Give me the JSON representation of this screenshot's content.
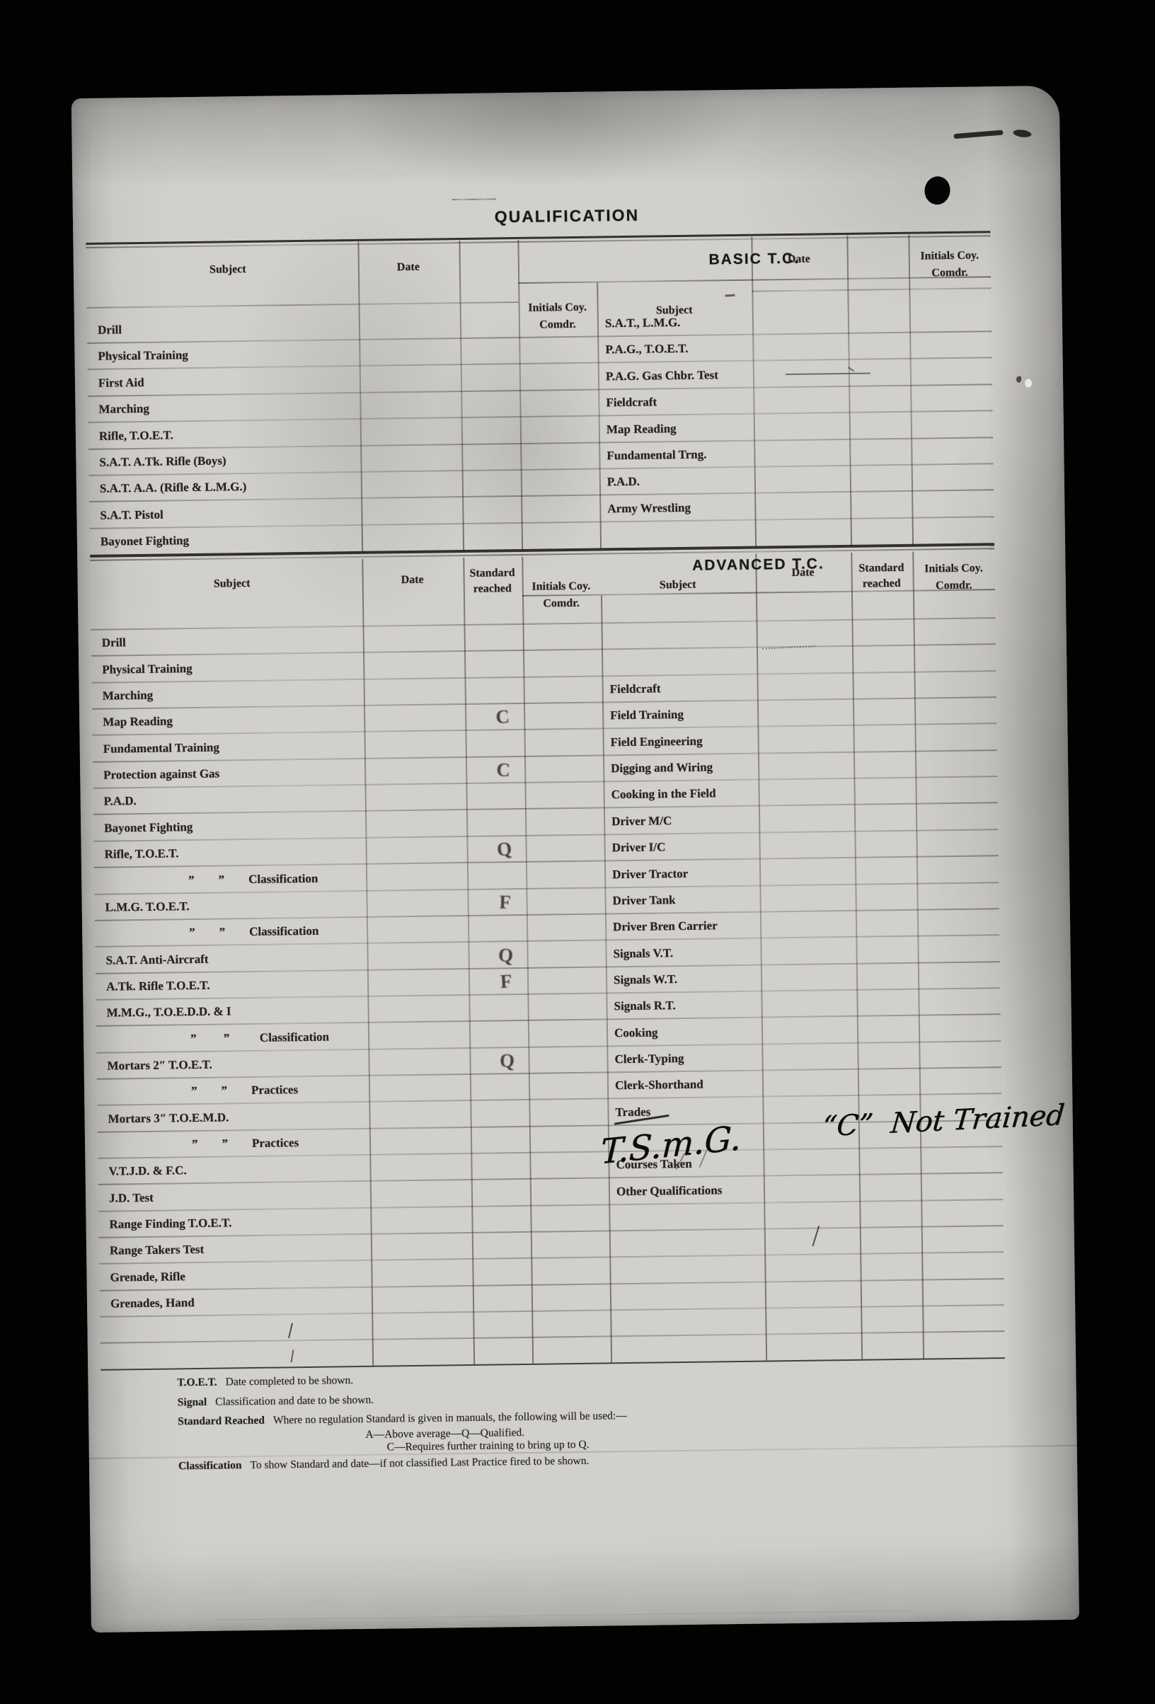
{
  "title": "QUALIFICATION",
  "basic": {
    "heading": "BASIC T.C.",
    "col_headers": {
      "subject_left": "Subject",
      "date_left": "Date",
      "initials_center_1": "Initials Coy.",
      "initials_center_2": "Comdr.",
      "subject_right": "Subject",
      "date_right": "Date",
      "initials_right_1": "Initials Coy.",
      "initials_right_2": "Comdr."
    },
    "left_subjects": [
      "Drill",
      "Physical Training",
      "First Aid",
      "Marching",
      "Rifle, T.O.E.T.",
      "S.A.T. A.Tk. Rifle (Boys)",
      "S.A.T. A.A. (Rifle & L.M.G.)",
      "S.A.T. Pistol",
      "Bayonet Fighting"
    ],
    "right_subjects": [
      "S.A.T., L.M.G.",
      "P.A.G., T.O.E.T.",
      "P.A.G. Gas Chbr. Test",
      "Fieldcraft",
      "Map Reading",
      "Fundamental Trng.",
      "P.A.D.",
      "Army Wrestling"
    ]
  },
  "advanced": {
    "heading": "ADVANCED T.C.",
    "col_headers": {
      "subject_left": "Subject",
      "date_left": "Date",
      "standard_1": "Standard",
      "standard_2": "reached",
      "initials_center_1": "Initials Coy.",
      "initials_center_2": "Comdr.",
      "subject_right": "Subject",
      "date_right": "Date",
      "standard_right_1": "Standard",
      "standard_right_2": "reached",
      "initials_right_1": "Initials Coy.",
      "initials_right_2": "Comdr."
    },
    "left_rows": [
      {
        "subject": "Drill"
      },
      {
        "subject": "Physical Training"
      },
      {
        "subject": "Marching"
      },
      {
        "subject": "Map Reading",
        "standard": "C"
      },
      {
        "subject": "Fundamental Training"
      },
      {
        "subject": "Protection against Gas",
        "standard": "C"
      },
      {
        "subject": "P.A.D."
      },
      {
        "subject": "Bayonet Fighting"
      },
      {
        "subject": "Rifle, T.O.E.T.",
        "standard": "Q"
      },
      {
        "subject": "”        ”        Classification",
        "indent": true
      },
      {
        "subject": "L.M.G. T.O.E.T.",
        "standard": "F"
      },
      {
        "subject": "”        ”        Classification",
        "indent": true
      },
      {
        "subject": "S.A.T. Anti-Aircraft",
        "standard": "Q"
      },
      {
        "subject": "A.Tk. Rifle T.O.E.T.",
        "standard": "F"
      },
      {
        "subject": "M.M.G., T.O.E.D.D. & I"
      },
      {
        "subject": "”         ”          Classification",
        "indent": true
      },
      {
        "subject": "Mortars 2″ T.O.E.T.",
        "standard": "Q"
      },
      {
        "subject": "”        ”        Practices",
        "indent": true
      },
      {
        "subject": "Mortars 3″ T.O.E.M.D."
      },
      {
        "subject": "”        ”        Practices",
        "indent": true
      },
      {
        "subject": "V.T.J.D. & F.C."
      },
      {
        "subject": "J.D. Test"
      },
      {
        "subject": "Range Finding T.O.E.T."
      },
      {
        "subject": "Range Takers Test"
      },
      {
        "subject": "Grenade, Rifle"
      },
      {
        "subject": "Grenades, Hand"
      }
    ],
    "right_rows": [
      {
        "row": 2,
        "subject": "Fieldcraft"
      },
      {
        "row": 3,
        "subject": "Field Training"
      },
      {
        "row": 4,
        "subject": "Field Engineering"
      },
      {
        "row": 5,
        "subject": "Digging and Wiring"
      },
      {
        "row": 6,
        "subject": "Cooking in the Field"
      },
      {
        "row": 7,
        "subject": "Driver M/C"
      },
      {
        "row": 8,
        "subject": "Driver I/C"
      },
      {
        "row": 9,
        "subject": "Driver Tractor"
      },
      {
        "row": 10,
        "subject": "Driver Tank"
      },
      {
        "row": 11,
        "subject": "Driver Bren Carrier"
      },
      {
        "row": 12,
        "subject": "Signals V.T."
      },
      {
        "row": 13,
        "subject": "Signals W.T."
      },
      {
        "row": 14,
        "subject": "Signals R.T."
      },
      {
        "row": 15,
        "subject": "Cooking"
      },
      {
        "row": 16,
        "subject": "Clerk-Typing"
      },
      {
        "row": 17,
        "subject": "Clerk-Shorthand"
      },
      {
        "row": 18,
        "subject": "Trades"
      },
      {
        "row": 20,
        "subject": "Courses Taken"
      },
      {
        "row": 21,
        "subject": "Other Qualifications"
      }
    ],
    "handwriting": {
      "trades_value": "T.S.m.G.",
      "note": "“C”  Not Trained"
    }
  },
  "footnotes": [
    {
      "term": "T.O.E.T.",
      "text": "Date completed to be shown."
    },
    {
      "term": "Signal",
      "text": "Classification and date to be shown."
    },
    {
      "term": "Standard Reached",
      "text": "Where no regulation Standard is given in manuals, the following will be used:—"
    },
    {
      "term": "",
      "text": "A—Above average—Q—Qualified."
    },
    {
      "term": "",
      "text": "C—Requires further training to bring up to Q."
    },
    {
      "term": "Classification",
      "text": "To show Standard and date—if not classified Last Practice fired to be shown."
    }
  ],
  "colors": {
    "background": "#000000",
    "paper": "#d2d0cb",
    "ink": "#24211f",
    "heading_ink": "#1b1918",
    "line": "#2a2725",
    "stamp": "#3f3640",
    "handwriting": "#0d0c0d"
  }
}
